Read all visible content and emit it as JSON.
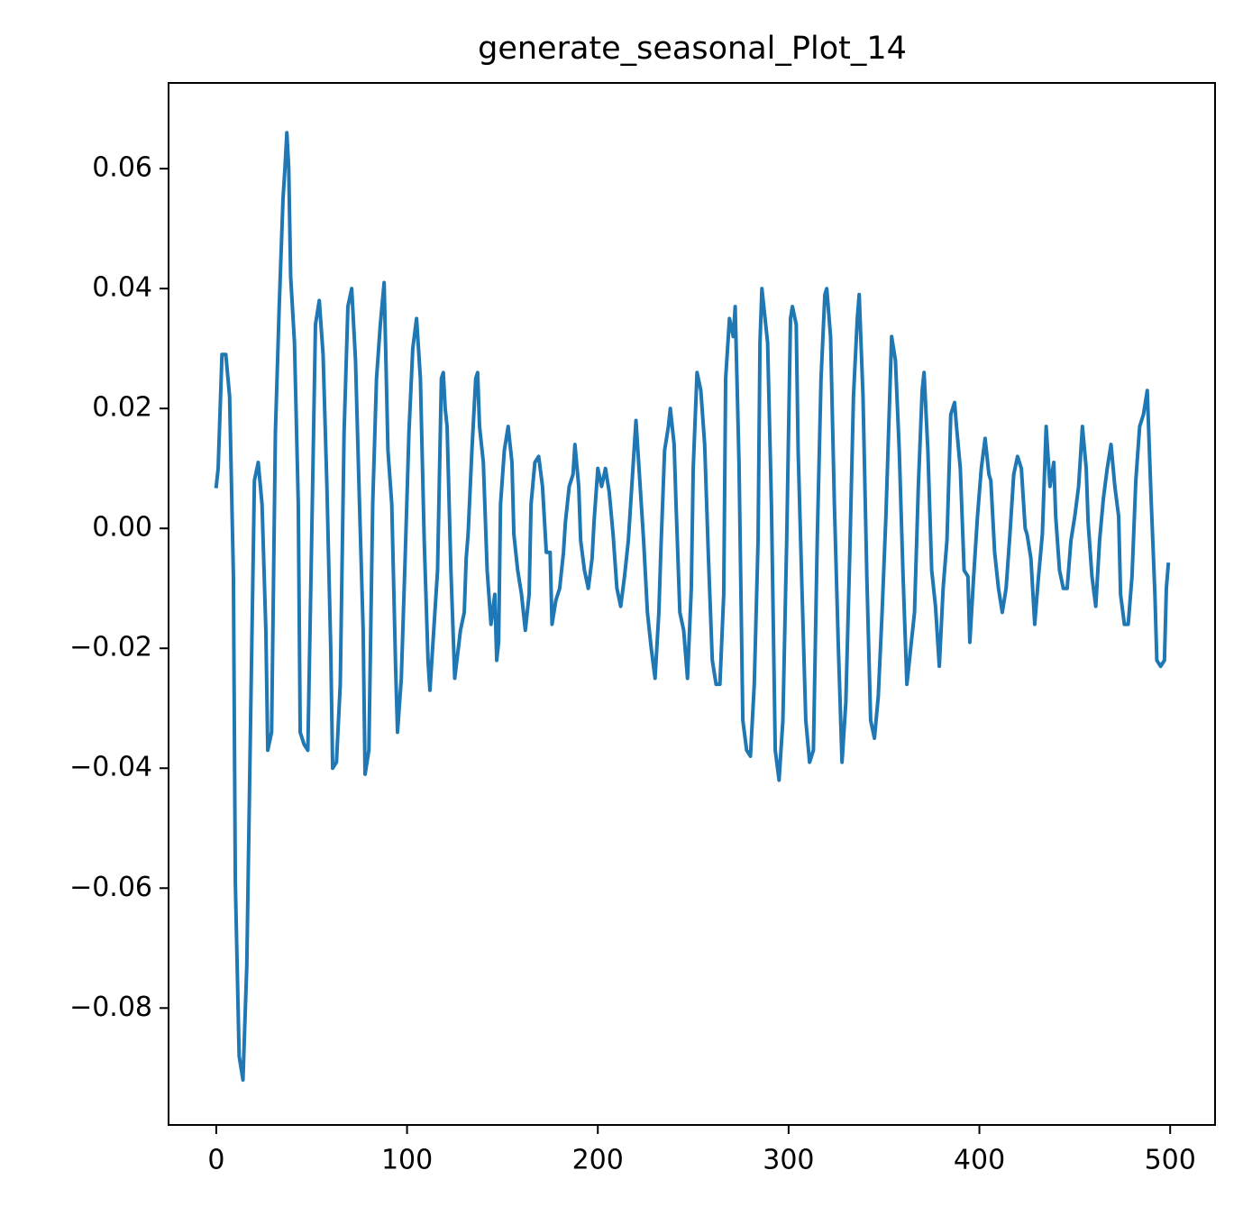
{
  "chart_data": {
    "type": "line",
    "title": "generate_seasonal_Plot_14",
    "x": [
      0,
      1,
      3,
      5,
      7,
      9,
      10,
      12,
      14,
      16,
      18,
      20,
      22,
      24,
      26,
      27,
      29,
      31,
      33,
      35,
      36,
      37,
      38,
      39,
      41,
      43,
      44,
      46,
      48,
      50,
      52,
      54,
      56,
      58,
      60,
      61,
      63,
      65,
      67,
      69,
      71,
      73,
      75,
      77,
      78,
      80,
      82,
      84,
      86,
      88,
      90,
      92,
      94,
      95,
      97,
      99,
      101,
      103,
      105,
      107,
      109,
      111,
      112,
      114,
      116,
      118,
      119,
      120,
      121,
      123,
      125,
      128,
      130,
      131,
      132,
      134,
      136,
      137,
      138,
      140,
      142,
      144,
      146,
      147,
      148,
      149,
      151,
      153,
      155,
      156,
      158,
      160,
      162,
      164,
      165,
      167,
      169,
      171,
      173,
      175,
      176,
      178,
      180,
      182,
      183,
      185,
      187,
      188,
      190,
      191,
      193,
      195,
      197,
      198,
      200,
      202,
      204,
      206,
      208,
      210,
      212,
      214,
      216,
      217,
      219,
      220,
      222,
      224,
      226,
      228,
      230,
      232,
      233,
      235,
      237,
      238,
      240,
      241,
      243,
      245,
      247,
      249,
      250,
      252,
      254,
      256,
      258,
      260,
      262,
      264,
      266,
      267,
      269,
      271,
      272,
      274,
      276,
      278,
      280,
      282,
      284,
      285,
      286,
      287,
      289,
      291,
      293,
      295,
      297,
      299,
      301,
      302,
      304,
      305,
      307,
      309,
      311,
      313,
      315,
      317,
      319,
      320,
      322,
      324,
      326,
      328,
      330,
      332,
      334,
      336,
      337,
      339,
      341,
      343,
      345,
      347,
      349,
      351,
      353,
      354,
      356,
      358,
      360,
      362,
      364,
      366,
      368,
      370,
      371,
      373,
      375,
      377,
      379,
      381,
      383,
      385,
      387,
      388,
      390,
      392,
      394,
      395,
      397,
      399,
      401,
      403,
      405,
      406,
      408,
      410,
      412,
      414,
      416,
      418,
      420,
      422,
      424,
      425,
      427,
      429,
      431,
      433,
      435,
      437,
      439,
      440,
      442,
      444,
      446,
      448,
      450,
      452,
      454,
      456,
      457,
      459,
      461,
      463,
      465,
      467,
      469,
      471,
      473,
      474,
      476,
      478,
      480,
      482,
      484,
      486,
      488,
      490,
      492,
      493,
      495,
      497,
      498,
      499
    ],
    "series": [
      {
        "color": "#1f77b4",
        "values": [
          0.007,
          0.01,
          0.029,
          0.029,
          0.022,
          -0.008,
          -0.059,
          -0.088,
          -0.092,
          -0.073,
          -0.032,
          0.008,
          0.011,
          0.004,
          -0.017,
          -0.037,
          -0.034,
          0.016,
          0.037,
          0.055,
          0.06,
          0.066,
          0.06,
          0.042,
          0.031,
          0.004,
          -0.034,
          -0.036,
          -0.037,
          -0.002,
          0.034,
          0.038,
          0.029,
          0.007,
          -0.02,
          -0.04,
          -0.039,
          -0.026,
          0.016,
          0.037,
          0.04,
          0.028,
          0.005,
          -0.017,
          -0.041,
          -0.037,
          0.004,
          0.025,
          0.034,
          0.041,
          0.013,
          0.004,
          -0.023,
          -0.034,
          -0.025,
          -0.005,
          0.016,
          0.03,
          0.035,
          0.025,
          -0.002,
          -0.022,
          -0.027,
          -0.017,
          -0.007,
          0.025,
          0.026,
          0.02,
          0.017,
          -0.007,
          -0.025,
          -0.017,
          -0.014,
          -0.005,
          -0.001,
          0.013,
          0.025,
          0.026,
          0.017,
          0.011,
          -0.007,
          -0.016,
          -0.011,
          -0.022,
          -0.019,
          0.004,
          0.013,
          0.017,
          0.011,
          -0.001,
          -0.007,
          -0.011,
          -0.017,
          -0.011,
          0.004,
          0.011,
          0.012,
          0.007,
          -0.004,
          -0.004,
          -0.016,
          -0.012,
          -0.01,
          -0.004,
          0.001,
          0.007,
          0.009,
          0.014,
          0.007,
          -0.002,
          -0.007,
          -0.01,
          -0.005,
          0.001,
          0.01,
          0.007,
          0.01,
          0.006,
          -0.001,
          -0.01,
          -0.013,
          -0.008,
          -0.002,
          0.003,
          0.013,
          0.018,
          0.008,
          -0.002,
          -0.014,
          -0.02,
          -0.025,
          -0.014,
          -0.004,
          0.013,
          0.017,
          0.02,
          0.014,
          0.004,
          -0.014,
          -0.017,
          -0.025,
          -0.01,
          0.01,
          0.026,
          0.023,
          0.014,
          -0.005,
          -0.022,
          -0.026,
          -0.026,
          -0.011,
          0.025,
          0.035,
          0.032,
          0.037,
          0.011,
          -0.032,
          -0.037,
          -0.038,
          -0.026,
          -0.002,
          0.031,
          0.04,
          0.037,
          0.031,
          0.004,
          -0.037,
          -0.042,
          -0.032,
          -0.002,
          0.035,
          0.037,
          0.034,
          0.013,
          -0.01,
          -0.032,
          -0.039,
          -0.037,
          -0.002,
          0.025,
          0.039,
          0.04,
          0.032,
          0.004,
          -0.019,
          -0.039,
          -0.029,
          -0.005,
          0.022,
          0.035,
          0.039,
          0.022,
          -0.008,
          -0.032,
          -0.035,
          -0.028,
          -0.014,
          0.002,
          0.022,
          0.032,
          0.028,
          0.013,
          -0.008,
          -0.026,
          -0.02,
          -0.014,
          0.007,
          0.023,
          0.026,
          0.013,
          -0.007,
          -0.013,
          -0.023,
          -0.01,
          -0.002,
          0.019,
          0.021,
          0.017,
          0.01,
          -0.007,
          -0.008,
          -0.019,
          -0.008,
          0.002,
          0.01,
          0.015,
          0.009,
          0.008,
          -0.004,
          -0.01,
          -0.014,
          -0.01,
          -0.001,
          0.009,
          0.012,
          0.01,
          0.0,
          -0.001,
          -0.005,
          -0.016,
          -0.008,
          -0.001,
          0.017,
          0.007,
          0.011,
          0.002,
          -0.007,
          -0.01,
          -0.01,
          -0.002,
          0.002,
          0.007,
          0.017,
          0.01,
          0.001,
          -0.008,
          -0.013,
          -0.002,
          0.005,
          0.01,
          0.014,
          0.007,
          0.002,
          -0.011,
          -0.016,
          -0.016,
          -0.008,
          0.008,
          0.017,
          0.019,
          0.023,
          0.005,
          -0.011,
          -0.022,
          -0.023,
          -0.022,
          -0.01,
          -0.006
        ]
      }
    ],
    "xlim": [
      -25,
      524
    ],
    "ylim": [
      -0.0995,
      0.0743
    ],
    "xticks": [
      0,
      100,
      200,
      300,
      400,
      500
    ],
    "yticks": [
      {
        "value": -0.08,
        "label": "−0.08"
      },
      {
        "value": -0.06,
        "label": "−0.06"
      },
      {
        "value": -0.04,
        "label": "−0.04"
      },
      {
        "value": -0.02,
        "label": "−0.02"
      },
      {
        "value": 0,
        "label": "0.00"
      },
      0.02,
      0.04,
      0.06
    ],
    "grid": false
  }
}
